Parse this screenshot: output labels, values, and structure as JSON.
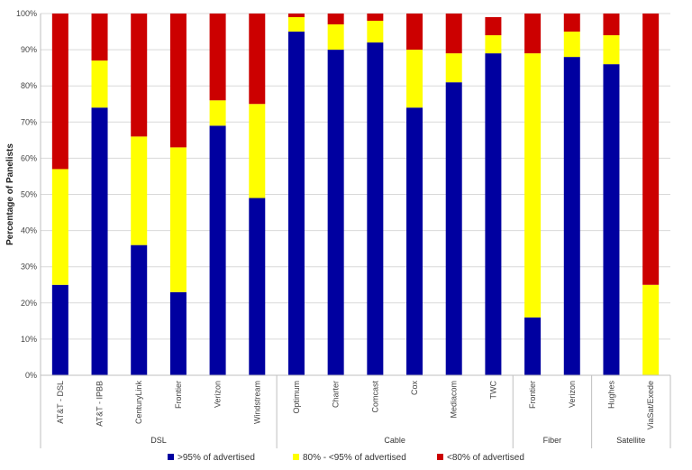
{
  "chart_data": {
    "type": "bar",
    "stacked": true,
    "ylabel": "Percentage of Panelists",
    "ylim": [
      0,
      100
    ],
    "yticks": [
      "0%",
      "10%",
      "20%",
      "30%",
      "40%",
      "50%",
      "60%",
      "70%",
      "80%",
      "90%",
      "100%"
    ],
    "categories": [
      "AT&T - DSL",
      "AT&T - IPBB",
      "CenturyLink",
      "Frontier",
      "Verizon",
      "Windstream",
      "Optimum",
      "Charter",
      "Comcast",
      "Cox",
      "Mediacom",
      "TWC",
      "Frontier",
      "Verizon",
      "Hughes",
      "ViaSat/Exede"
    ],
    "groups": [
      {
        "name": "DSL",
        "count": 6
      },
      {
        "name": "Cable",
        "count": 6
      },
      {
        "name": "Fiber",
        "count": 2
      },
      {
        "name": "Satellite",
        "count": 2
      }
    ],
    "series": [
      {
        "name": ">95% of advertised",
        "color": "#0000A0",
        "values": [
          25,
          74,
          36,
          23,
          69,
          49,
          95,
          90,
          92,
          74,
          81,
          89,
          16,
          88,
          86,
          0
        ]
      },
      {
        "name": "80% - <95% of advertised",
        "color": "#FFFF00",
        "values": [
          32,
          13,
          30,
          40,
          7,
          26,
          4,
          7,
          6,
          16,
          8,
          5,
          73,
          7,
          8,
          25
        ]
      },
      {
        "name": "<80% of advertised",
        "color": "#CC0000",
        "values": [
          43,
          13,
          34,
          37,
          24,
          25,
          1,
          3,
          2,
          10,
          11,
          5,
          11,
          5,
          6,
          75
        ]
      }
    ],
    "legend_position": "bottom"
  }
}
